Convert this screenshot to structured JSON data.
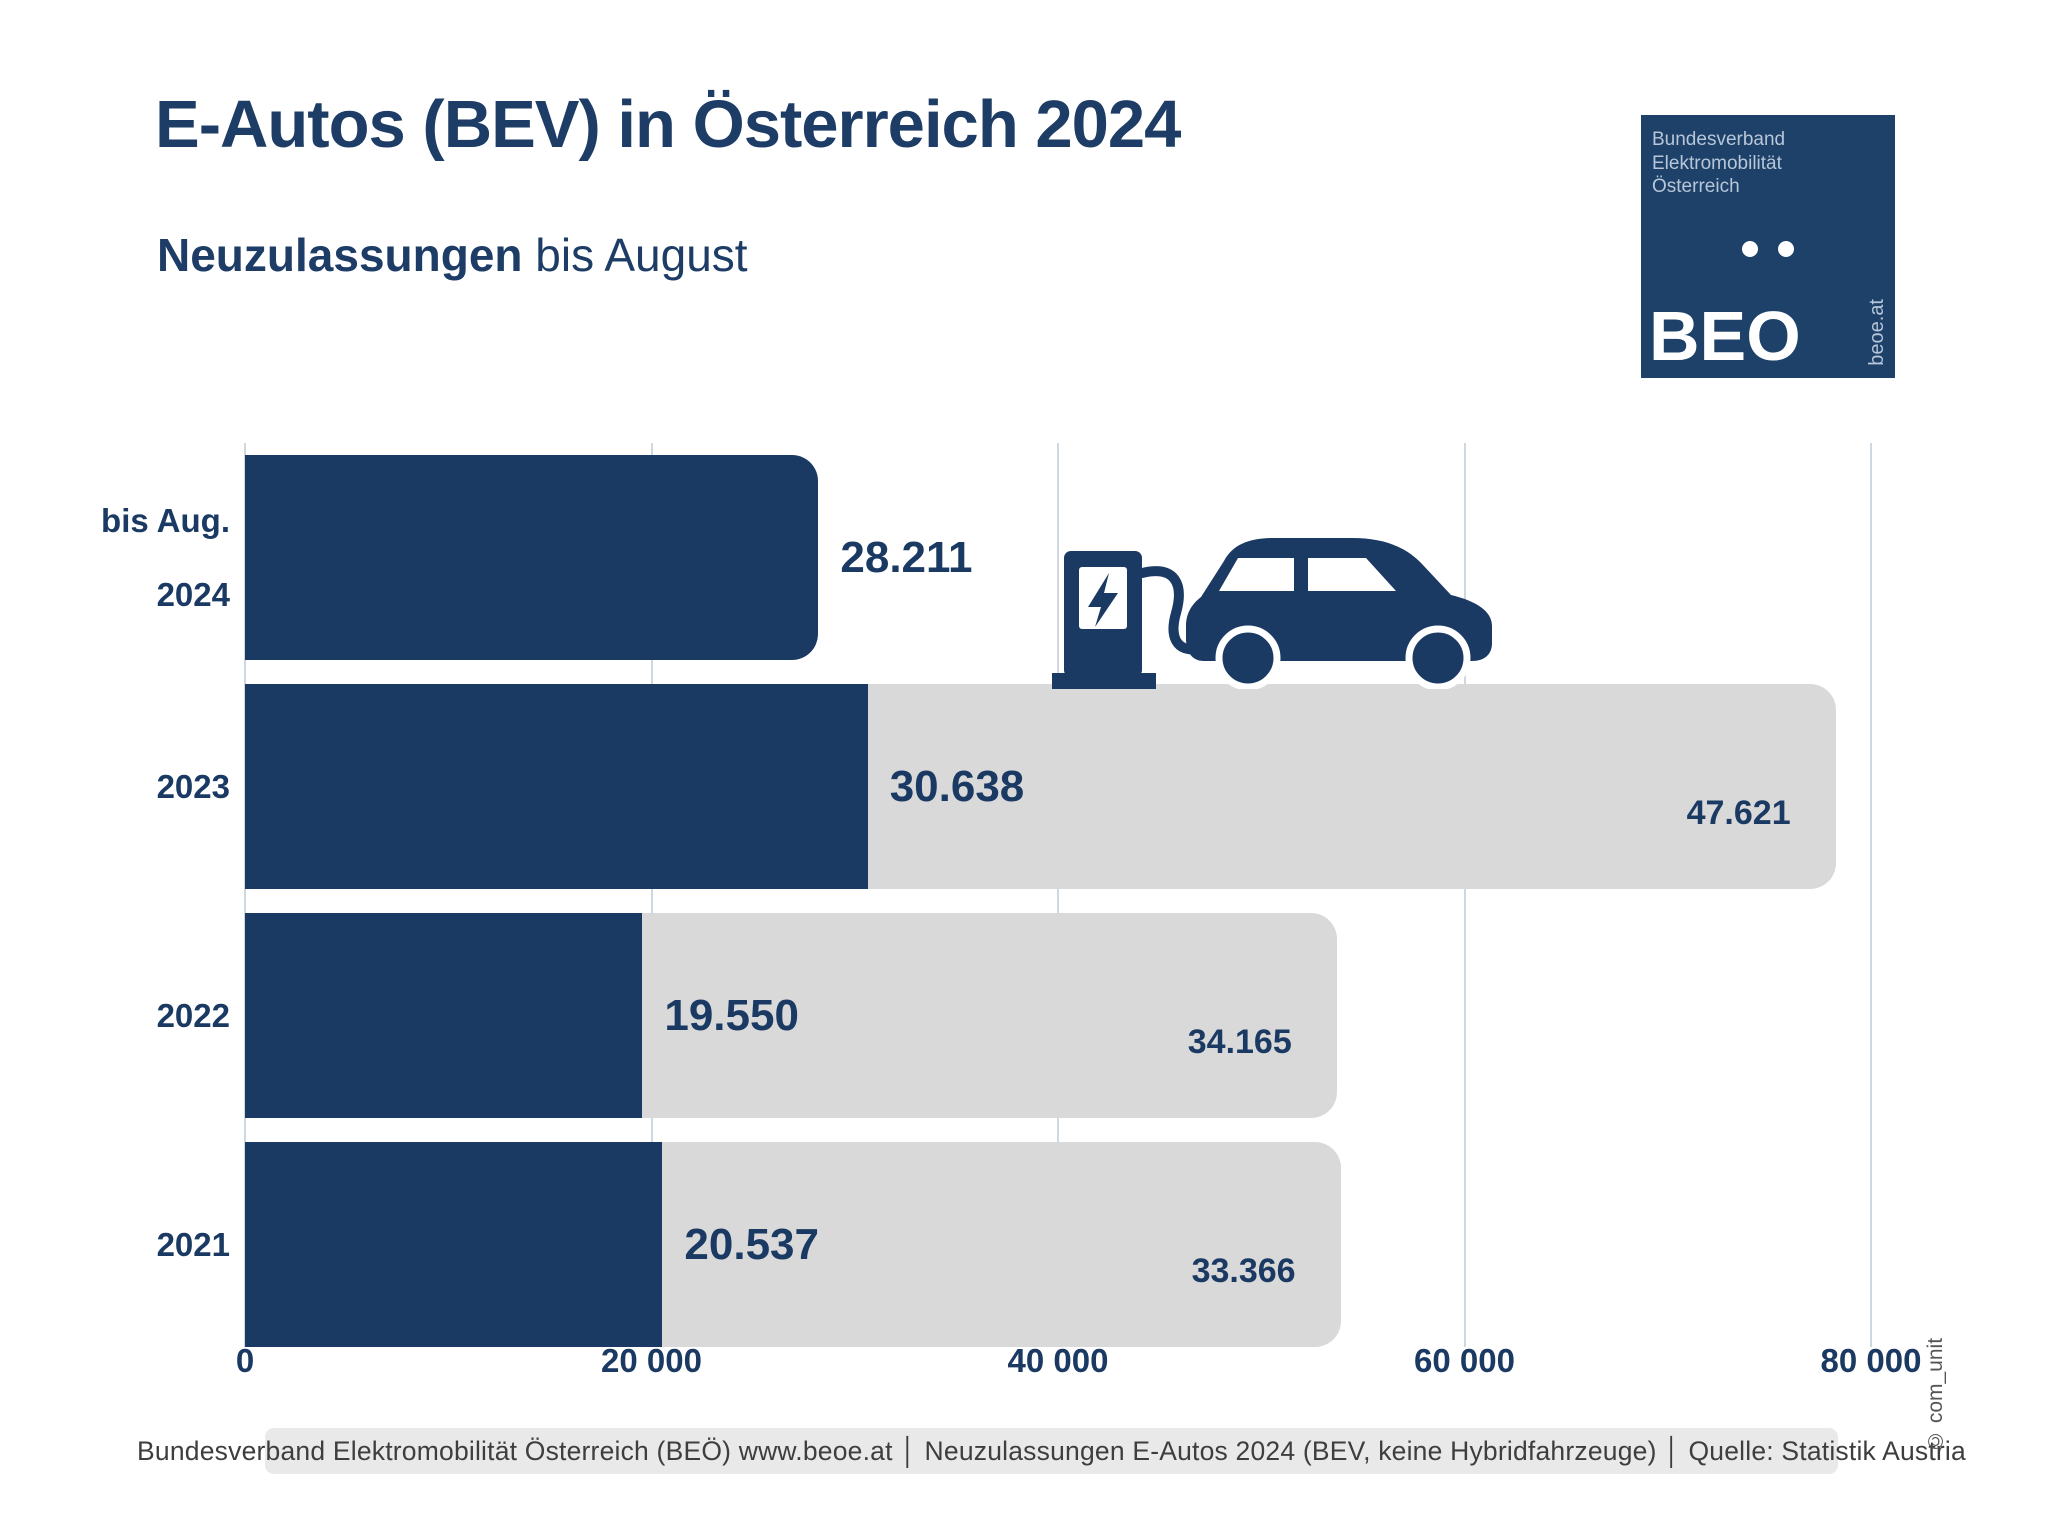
{
  "chart_data": {
    "type": "bar",
    "orientation": "horizontal",
    "title": "E-Autos (BEV) in Österreich 2024",
    "subtitle": "Neuzulassungen bis August",
    "subtitle_bold": "Neuzulassungen",
    "subtitle_rest": " bis August",
    "x_axis": {
      "min": 0,
      "max": 80000,
      "gridlines": true,
      "ticks": [
        {
          "value": 0,
          "label": "0"
        },
        {
          "value": 20000,
          "label": "20 000"
        },
        {
          "value": 40000,
          "label": "40 000"
        },
        {
          "value": 60000,
          "label": "60 000"
        },
        {
          "value": 80000,
          "label": "80 000"
        }
      ]
    },
    "rows": [
      {
        "category_lines": [
          "bis Aug.",
          "2024"
        ],
        "until_august": {
          "value": 28211,
          "label": "28.211"
        },
        "full_year": null
      },
      {
        "category_lines": [
          "2023"
        ],
        "until_august": {
          "value": 30638,
          "label": "30.638"
        },
        "full_year": {
          "value": 47621,
          "label": "47.621"
        }
      },
      {
        "category_lines": [
          "2022"
        ],
        "until_august": {
          "value": 19550,
          "label": "19.550"
        },
        "full_year": {
          "value": 34165,
          "label": "34.165"
        }
      },
      {
        "category_lines": [
          "2021"
        ],
        "until_august": {
          "value": 20537,
          "label": "20.537"
        },
        "full_year": {
          "value": 33366,
          "label": "33.366"
        }
      }
    ],
    "colors": {
      "until_august": "#1b3a63",
      "full_year": "#d9d9d9",
      "gridline": "#cdd8e1",
      "label_text": "#1b3a63"
    },
    "layout_hints": {
      "legend": "none",
      "full_year_segment_stacked_after_until_august": true,
      "until_august_label_position": "right of dark segment",
      "full_year_label_position": "inside gray segment, right-aligned, below center"
    }
  },
  "icons": {
    "ev_charging_car": "ev-charging-station-and-car-icon"
  },
  "logo": {
    "org_lines": [
      "Bundesverband",
      "Elektromobilität",
      "Österreich"
    ],
    "brand": "BEO",
    "site": "beoe.at",
    "background": "#1d4168"
  },
  "footer": {
    "source_text": "Bundesverband Elektromobilität Österreich (BEÖ) www.beoe.at │ Neuzulassungen E-Autos 2024 (BEV, keine Hybridfahrzeuge) │ Quelle: Statistik Austria",
    "copyright": "© com_unit"
  }
}
